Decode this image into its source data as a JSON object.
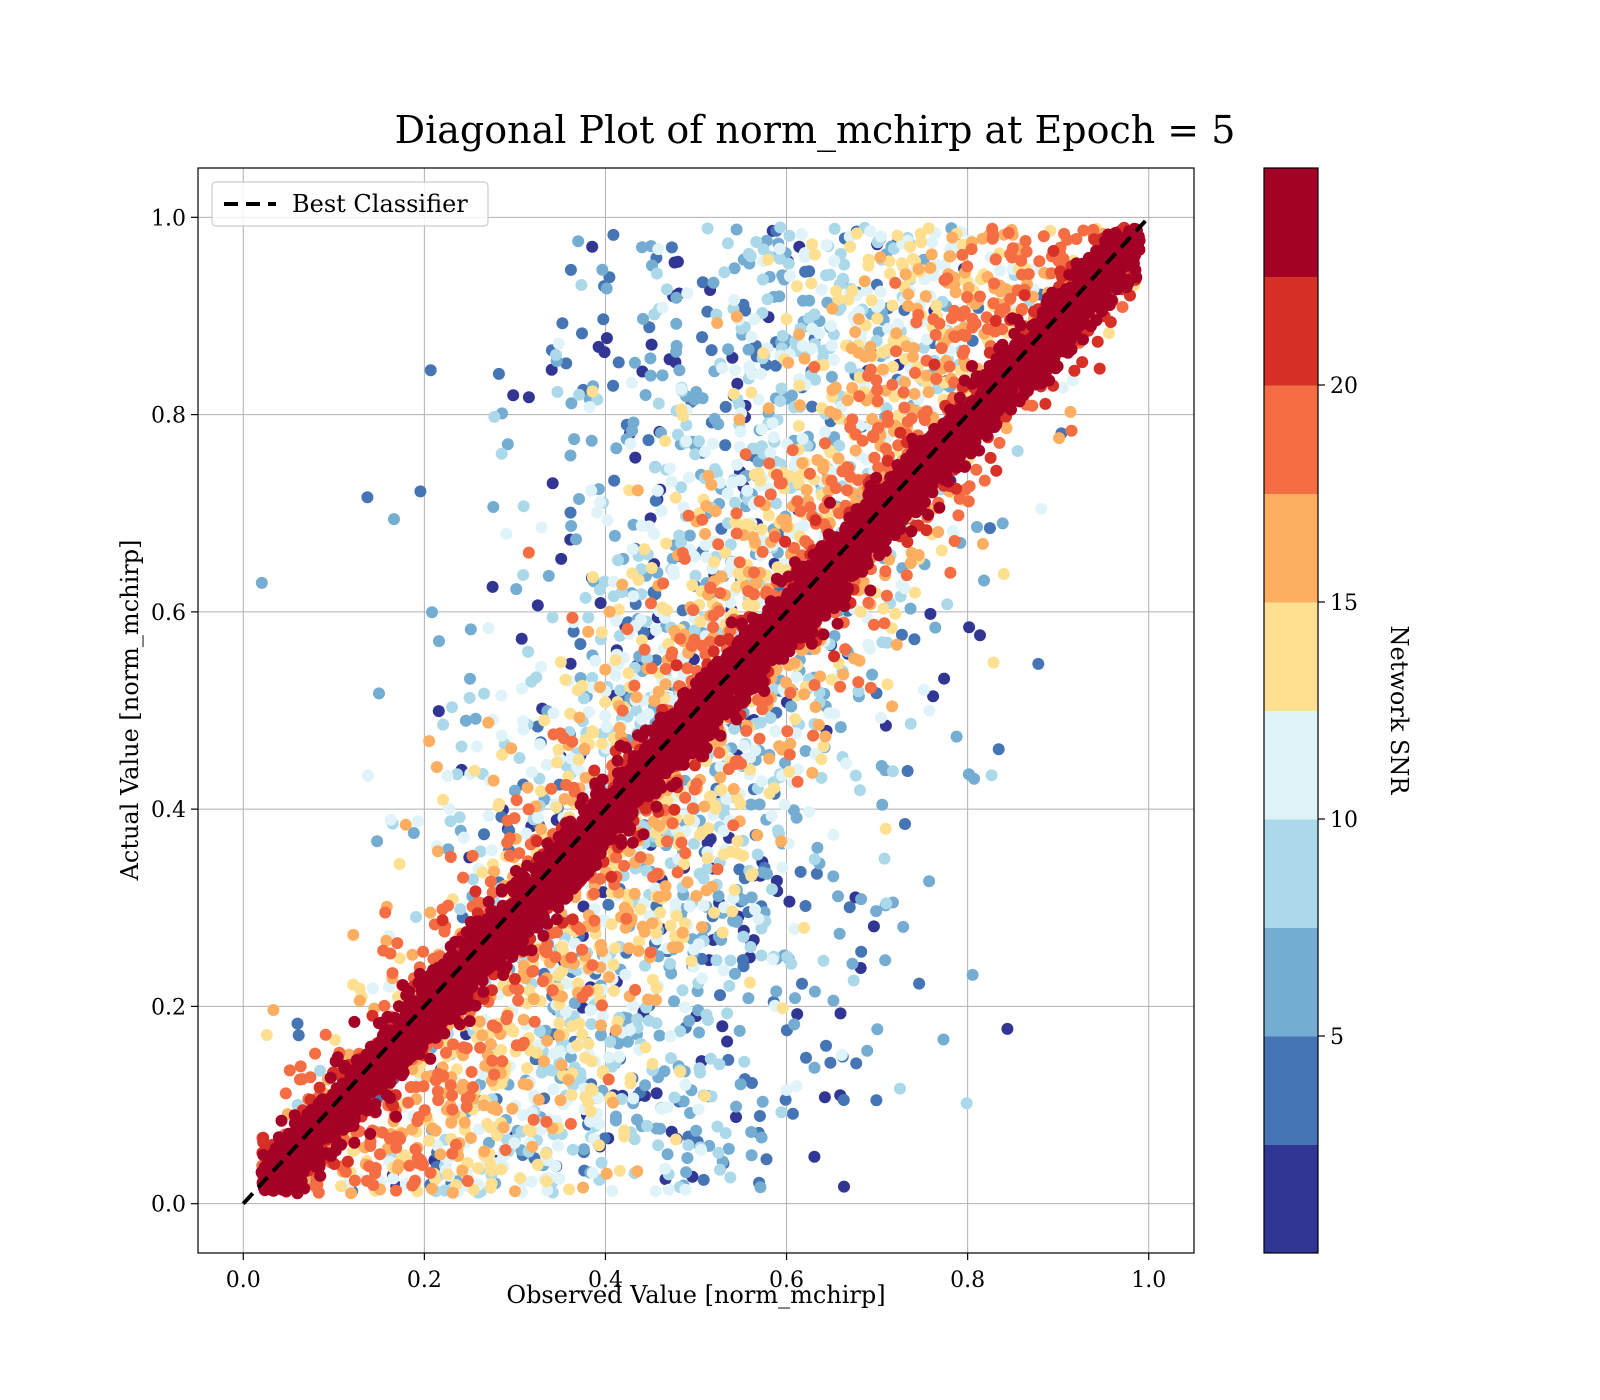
{
  "chart_data": {
    "type": "scatter",
    "title": "Diagonal Plot of norm_mchirp at Epoch = 5",
    "xlabel": "Observed Value [norm_mchirp]",
    "ylabel": "Actual Value [norm_mchirp]",
    "xlim": [
      -0.05,
      1.05
    ],
    "ylim": [
      -0.05,
      1.05
    ],
    "xticks": [
      0.0,
      0.2,
      0.4,
      0.6,
      0.8,
      1.0
    ],
    "yticks": [
      0.0,
      0.2,
      0.4,
      0.6,
      0.8,
      1.0
    ],
    "xtick_labels": [
      "0.0",
      "0.2",
      "0.4",
      "0.6",
      "0.8",
      "1.0"
    ],
    "ytick_labels": [
      "0.0",
      "0.2",
      "0.4",
      "0.6",
      "0.8",
      "1.0"
    ],
    "grid": true,
    "legend": {
      "placement": "upper-left",
      "entries": [
        {
          "label": "Best Classifier",
          "style": "dashed",
          "color": "#000000"
        }
      ]
    },
    "reference_line": {
      "name": "Best Classifier",
      "x": [
        0.0,
        1.0
      ],
      "y": [
        0.0,
        1.0
      ]
    },
    "colorbar": {
      "label": "Network SNR",
      "range": [
        0,
        25
      ],
      "ticks": [
        5,
        10,
        15,
        20
      ],
      "tick_labels": [
        "5",
        "10",
        "15",
        "20"
      ],
      "colormap": "RdYlBu_r",
      "bins": 10,
      "colors": [
        "#313695",
        "#4575b4",
        "#74add1",
        "#abd9e9",
        "#e0f3f8",
        "#fee090",
        "#fdae61",
        "#f46d43",
        "#d73027",
        "#a50026"
      ]
    },
    "series_description": {
      "snr_high_spread": 0.025,
      "snr_low_spread": 0.25
    },
    "points_approx": 9000
  }
}
